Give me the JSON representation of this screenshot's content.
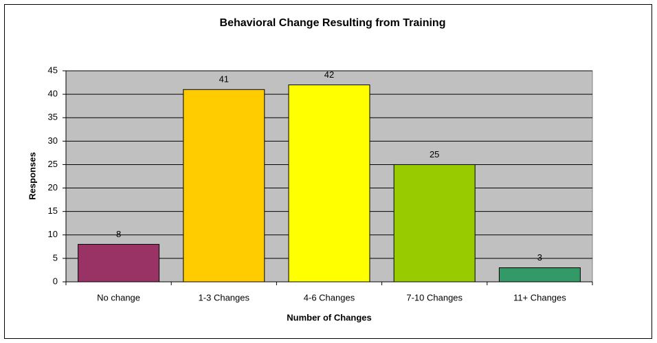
{
  "chart_data": {
    "type": "bar",
    "title": "Behavioral Change Resulting from Training",
    "categories": [
      "No change",
      "1-3 Changes",
      "4-6 Changes",
      "7-10 Changes",
      "11+ Changes"
    ],
    "values": [
      8,
      41,
      42,
      25,
      3
    ],
    "colors": [
      "#993366",
      "#ffcc00",
      "#ffff00",
      "#99cc00",
      "#339966"
    ],
    "xlabel": "Number of Changes",
    "ylabel": "Responses",
    "ylim": [
      0,
      45
    ],
    "yticks": [
      0,
      5,
      10,
      15,
      20,
      25,
      30,
      35,
      40,
      45
    ],
    "grid": true
  }
}
